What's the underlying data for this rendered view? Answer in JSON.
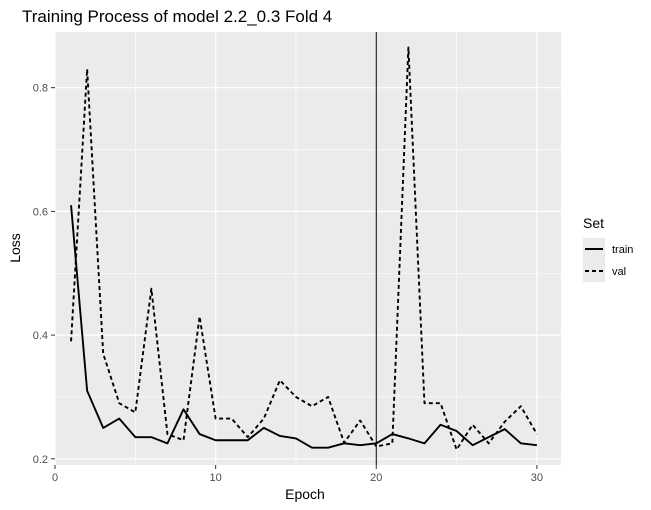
{
  "chart_data": {
    "type": "line",
    "title": "Training Process of model 2.2_0.3 Fold 4",
    "xlabel": "Epoch",
    "ylabel": "Loss",
    "xlim": [
      0,
      31.5
    ],
    "ylim": [
      0.19,
      0.89
    ],
    "x_ticks": [
      0,
      10,
      20,
      30
    ],
    "y_ticks": [
      0.2,
      0.4,
      0.6,
      0.8
    ],
    "grid": true,
    "vline_x": 20,
    "legend": {
      "title": "Set",
      "position": "right"
    },
    "x": [
      1,
      2,
      3,
      4,
      5,
      6,
      7,
      8,
      9,
      10,
      11,
      12,
      13,
      14,
      15,
      16,
      17,
      18,
      19,
      20,
      21,
      22,
      23,
      24,
      25,
      26,
      27,
      28,
      29,
      30
    ],
    "series": [
      {
        "name": "train",
        "line_style": "solid",
        "values": [
          0.61,
          0.31,
          0.25,
          0.265,
          0.235,
          0.235,
          0.225,
          0.28,
          0.24,
          0.23,
          0.23,
          0.23,
          0.25,
          0.237,
          0.233,
          0.218,
          0.218,
          0.225,
          0.222,
          0.225,
          0.24,
          0.233,
          0.225,
          0.255,
          0.245,
          0.222,
          0.235,
          0.248,
          0.225,
          0.222
        ]
      },
      {
        "name": "val",
        "line_style": "dashed",
        "values": [
          0.39,
          0.83,
          0.37,
          0.29,
          0.275,
          0.475,
          0.24,
          0.23,
          0.43,
          0.265,
          0.265,
          0.235,
          0.265,
          0.327,
          0.3,
          0.285,
          0.3,
          0.226,
          0.262,
          0.22,
          0.225,
          0.865,
          0.29,
          0.29,
          0.215,
          0.255,
          0.225,
          0.26,
          0.285,
          0.24
        ]
      }
    ],
    "colors": {
      "panel": "#ebebeb",
      "grid": "#ffffff",
      "line": "#000000",
      "text": "#4d4d4d"
    }
  }
}
